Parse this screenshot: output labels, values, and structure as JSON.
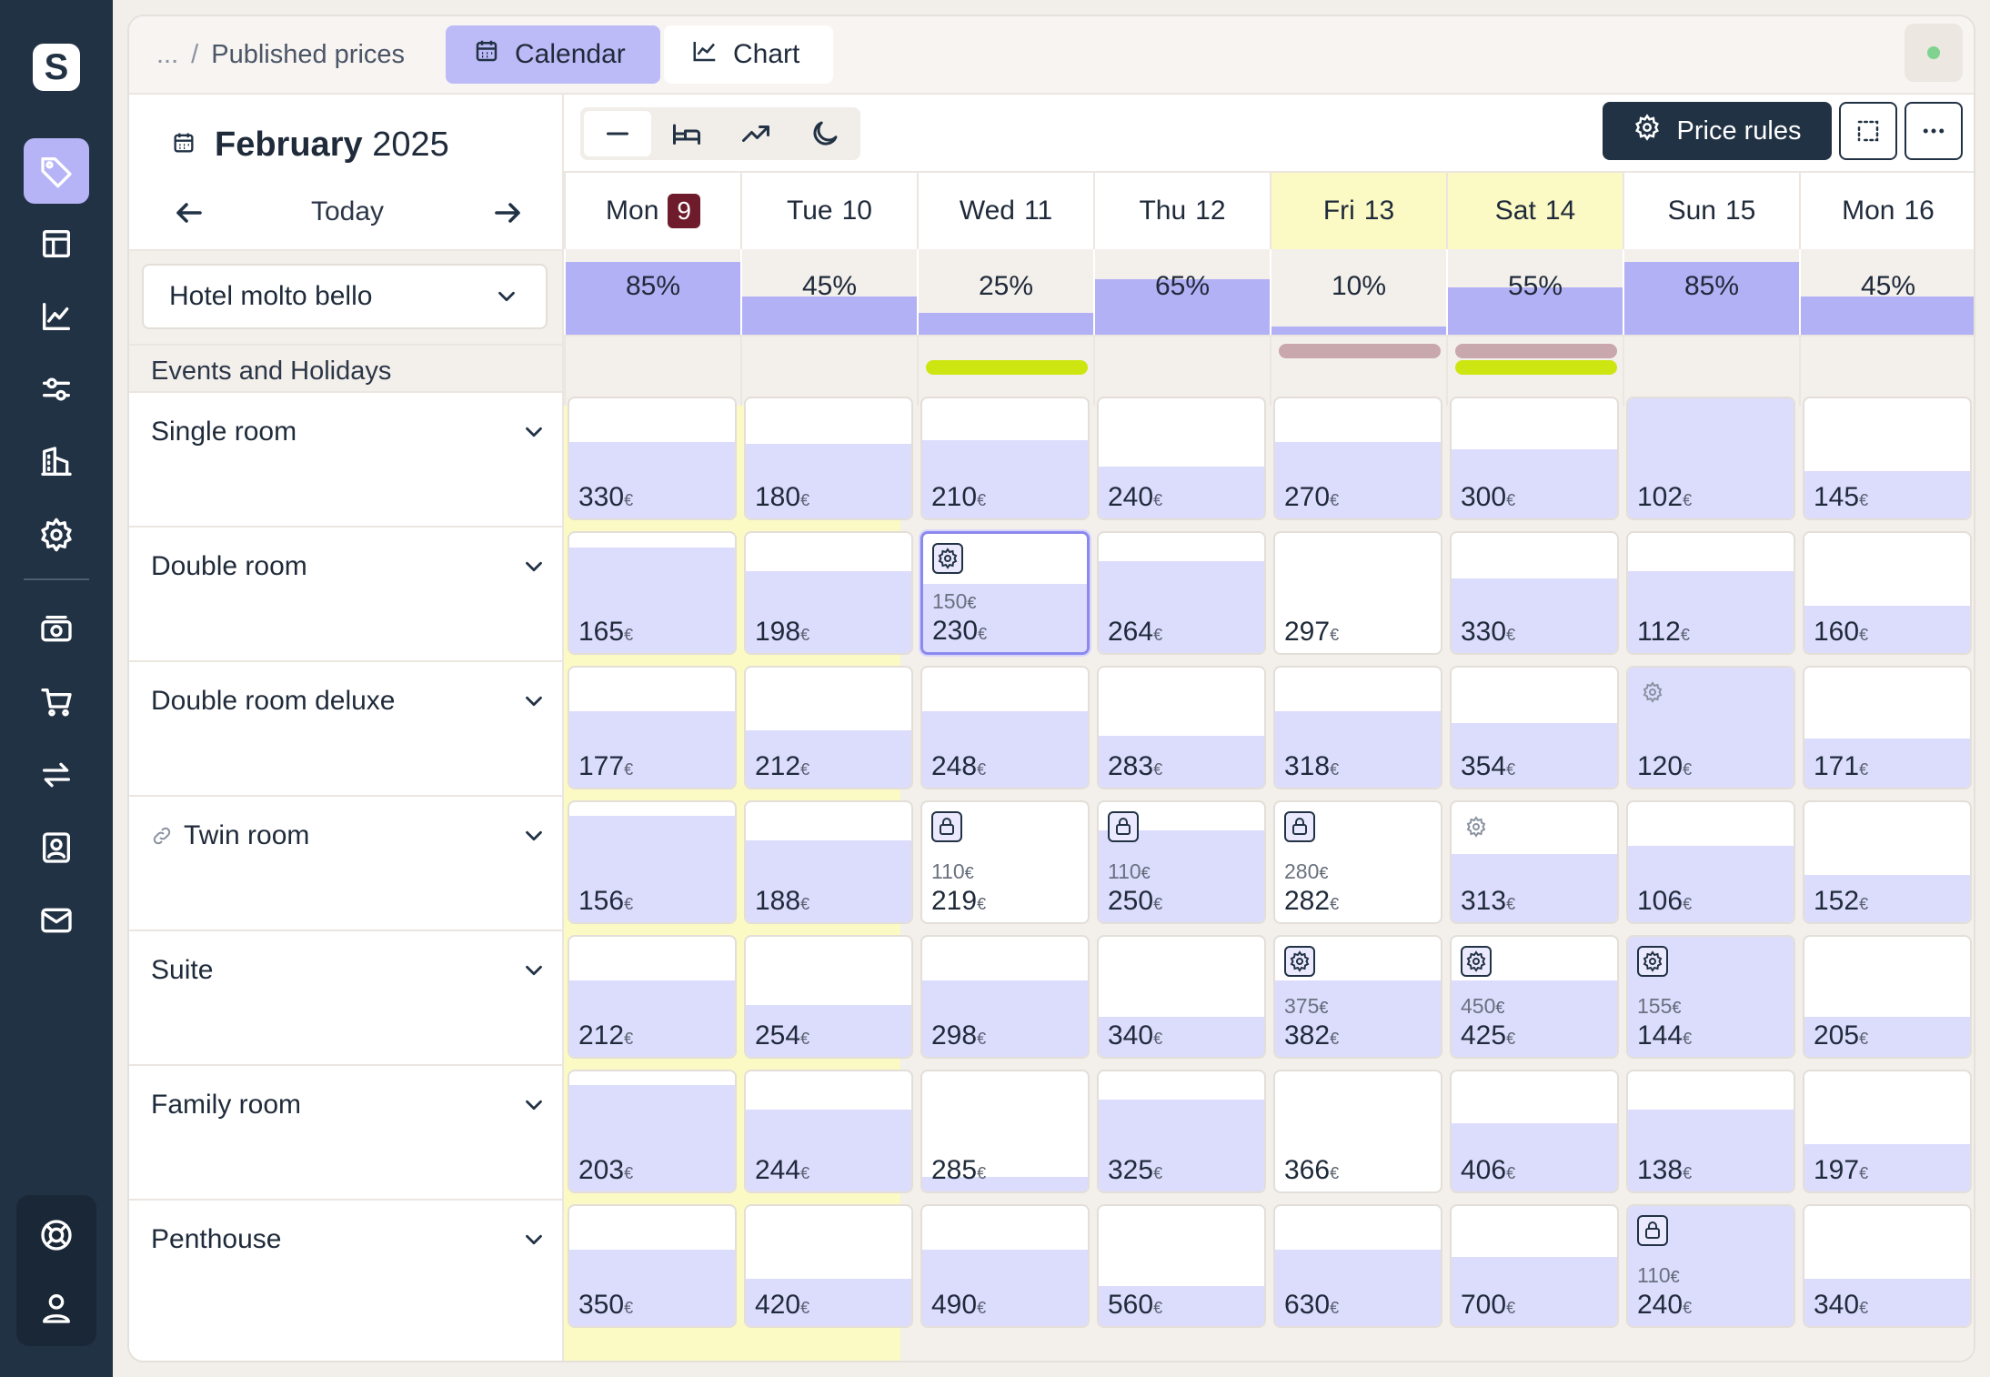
{
  "app": {
    "logo_letter": "S"
  },
  "nav": {
    "items": [
      "pricing-tag-icon",
      "layout-icon",
      "analytics-icon",
      "sliders-icon",
      "buildings-icon",
      "settings-icon",
      "money-icon",
      "cart-icon",
      "sync-icon",
      "contact-icon",
      "mail-icon"
    ],
    "active": "pricing-tag-icon",
    "bottom": [
      "support-icon",
      "user-icon"
    ]
  },
  "topbar": {
    "crumb_dim": "...",
    "crumb_sep": "/",
    "crumb": "Published prices",
    "tabs": [
      {
        "label": "Calendar",
        "icon": "calendar-icon",
        "active": true
      },
      {
        "label": "Chart",
        "icon": "chart-icon",
        "active": false
      }
    ]
  },
  "calendar": {
    "month": "February",
    "year": "2025",
    "today_label": "Today",
    "hotel": "Hotel molto bello",
    "events_label": "Events and Holidays"
  },
  "toolbar": {
    "price_rules_label": "Price rules",
    "view_modes": [
      "line-icon",
      "bed-icon",
      "trend-icon",
      "moon-icon"
    ]
  },
  "days": [
    {
      "dow": "Mon",
      "num": "9",
      "today": true,
      "weekend": false,
      "occupancy": "85%",
      "occ_level": 0.85,
      "events": []
    },
    {
      "dow": "Tue",
      "num": "10",
      "today": false,
      "weekend": false,
      "occupancy": "45%",
      "occ_level": 0.45,
      "events": []
    },
    {
      "dow": "Wed",
      "num": "11",
      "today": false,
      "weekend": false,
      "occupancy": "25%",
      "occ_level": 0.25,
      "events": [
        "lime"
      ]
    },
    {
      "dow": "Thu",
      "num": "12",
      "today": false,
      "weekend": false,
      "occupancy": "65%",
      "occ_level": 0.65,
      "events": []
    },
    {
      "dow": "Fri",
      "num": "13",
      "today": false,
      "weekend": true,
      "occupancy": "10%",
      "occ_level": 0.1,
      "events": [
        "mauve"
      ]
    },
    {
      "dow": "Sat",
      "num": "14",
      "today": false,
      "weekend": true,
      "occupancy": "55%",
      "occ_level": 0.55,
      "events": [
        "mauve",
        "lime"
      ]
    },
    {
      "dow": "Sun",
      "num": "15",
      "today": false,
      "weekend": false,
      "occupancy": "85%",
      "occ_level": 0.85,
      "events": []
    },
    {
      "dow": "Mon",
      "num": "16",
      "today": false,
      "weekend": false,
      "occupancy": "45%",
      "occ_level": 0.45,
      "events": []
    }
  ],
  "event_colors": {
    "lime": "#cde612",
    "mauve": "#c9a8ad"
  },
  "rooms": [
    {
      "name": "Single room",
      "linked": false,
      "cells": [
        {
          "price": "330",
          "fill": 0.62
        },
        {
          "price": "180",
          "fill": 0.6
        },
        {
          "price": "210",
          "fill": 0.63
        },
        {
          "price": "240",
          "fill": 0.42
        },
        {
          "price": "270",
          "fill": 0.62
        },
        {
          "price": "300",
          "fill": 0.56
        },
        {
          "price": "102",
          "fill": 1.0
        },
        {
          "price": "145",
          "fill": 0.38
        }
      ]
    },
    {
      "name": "Double room",
      "linked": false,
      "cells": [
        {
          "price": "165",
          "fill": 0.85
        },
        {
          "price": "198",
          "fill": 0.66
        },
        {
          "price": "230",
          "old": "150",
          "icon": "gear",
          "boxed": true,
          "selected": true,
          "fill": 0.55
        },
        {
          "price": "264",
          "fill": 0.74
        },
        {
          "price": "297",
          "fill": 0.0
        },
        {
          "price": "330",
          "fill": 0.6
        },
        {
          "price": "112",
          "fill": 0.66
        },
        {
          "price": "160",
          "fill": 0.38
        }
      ]
    },
    {
      "name": "Double room deluxe",
      "linked": false,
      "cells": [
        {
          "price": "177",
          "fill": 0.62
        },
        {
          "price": "212",
          "fill": 0.46
        },
        {
          "price": "248",
          "fill": 0.62
        },
        {
          "price": "283",
          "fill": 0.42
        },
        {
          "price": "318",
          "fill": 0.62
        },
        {
          "price": "354",
          "fill": 0.52
        },
        {
          "price": "120",
          "old": "",
          "icon": "gear",
          "boxed": false,
          "fill": 1.0
        },
        {
          "price": "171",
          "fill": 0.4
        }
      ]
    },
    {
      "name": "Twin room",
      "linked": true,
      "cells": [
        {
          "price": "156",
          "fill": 0.86
        },
        {
          "price": "188",
          "fill": 0.66
        },
        {
          "price": "219",
          "old": "110",
          "icon": "lock",
          "boxed": true,
          "fill": 0.0
        },
        {
          "price": "250",
          "old": "110",
          "icon": "lock",
          "boxed": true,
          "fill": 0.74
        },
        {
          "price": "282",
          "old": "280",
          "icon": "lock",
          "boxed": true,
          "fill": 0.0
        },
        {
          "price": "313",
          "icon": "gear",
          "boxed": false,
          "fill": 0.55
        },
        {
          "price": "106",
          "fill": 0.62
        },
        {
          "price": "152",
          "fill": 0.38
        }
      ]
    },
    {
      "name": "Suite",
      "linked": false,
      "cells": [
        {
          "price": "212",
          "fill": 0.62
        },
        {
          "price": "254",
          "fill": 0.42
        },
        {
          "price": "298",
          "fill": 0.62
        },
        {
          "price": "340",
          "fill": 0.32
        },
        {
          "price": "382",
          "old": "375",
          "icon": "gear",
          "boxed": true,
          "fill": 0.62
        },
        {
          "price": "425",
          "old": "450",
          "icon": "gear",
          "boxed": true,
          "fill": 0.62
        },
        {
          "price": "144",
          "old": "155",
          "icon": "gear",
          "boxed": true,
          "fill": 1.0
        },
        {
          "price": "205",
          "fill": 0.32
        }
      ]
    },
    {
      "name": "Family room",
      "linked": false,
      "cells": [
        {
          "price": "203",
          "fill": 0.86
        },
        {
          "price": "244",
          "fill": 0.66
        },
        {
          "price": "285",
          "fill": 0.12
        },
        {
          "price": "325",
          "fill": 0.74
        },
        {
          "price": "366",
          "fill": 0.0
        },
        {
          "price": "406",
          "fill": 0.55
        },
        {
          "price": "138",
          "fill": 0.66
        },
        {
          "price": "197",
          "fill": 0.38
        }
      ]
    },
    {
      "name": "Penthouse",
      "linked": false,
      "cells": [
        {
          "price": "350",
          "fill": 0.62
        },
        {
          "price": "420",
          "fill": 0.38
        },
        {
          "price": "490",
          "fill": 0.62
        },
        {
          "price": "560",
          "fill": 0.32
        },
        {
          "price": "630",
          "fill": 0.62
        },
        {
          "price": "700",
          "fill": 0.56
        },
        {
          "price": "240",
          "old": "110",
          "icon": "lock",
          "boxed": true,
          "fill": 1.0
        },
        {
          "price": "340",
          "fill": 0.38
        }
      ]
    }
  ],
  "currency": "€"
}
